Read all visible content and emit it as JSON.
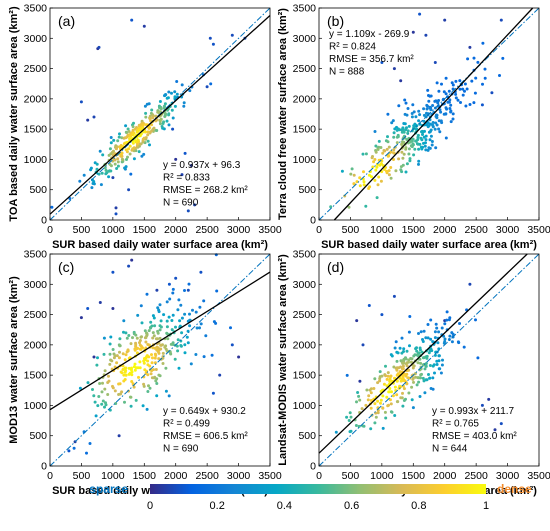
{
  "chart_data": [
    {
      "type": "scatter",
      "panel_label": "(a)",
      "xlabel": "SUR based daily water surface area (km²)",
      "ylabel": "TOA based daily water surface area (km²)",
      "xlim": [
        0,
        3500
      ],
      "ylim": [
        0,
        3500
      ],
      "xticks": [
        0,
        500,
        1000,
        1500,
        2000,
        2500,
        3000,
        3500
      ],
      "yticks": [
        0,
        500,
        1000,
        1500,
        2000,
        2500,
        3000,
        3500
      ],
      "fit": {
        "slope": 0.937,
        "intercept": 96.3
      },
      "stats": [
        "y = 0.937x + 96.3",
        "R² = 0.833",
        "RMSE = 268.2 km²",
        "N = 690"
      ],
      "stats_position": "lower-right",
      "cloud": {
        "center": [
          1400,
          1400
        ],
        "spread_along": 520,
        "spread_across": 110,
        "hot_center": [
          1350,
          1350
        ],
        "count": 300
      },
      "outliers": [
        [
          780,
          2850
        ],
        [
          760,
          2830
        ],
        [
          1300,
          3300
        ],
        [
          1500,
          3200
        ],
        [
          2550,
          3000
        ],
        [
          2900,
          3050
        ],
        [
          1950,
          1500
        ],
        [
          2150,
          1100
        ],
        [
          2250,
          900
        ],
        [
          2100,
          750
        ],
        [
          2300,
          250
        ],
        [
          2200,
          150
        ],
        [
          1050,
          200
        ],
        [
          1050,
          100
        ],
        [
          1250,
          500
        ],
        [
          500,
          1950
        ],
        [
          700,
          1700
        ],
        [
          600,
          1650
        ],
        [
          1000,
          700
        ],
        [
          2000,
          1000
        ],
        [
          2600,
          2900
        ],
        [
          3100,
          3000
        ],
        [
          2500,
          2200
        ]
      ]
    },
    {
      "type": "scatter",
      "panel_label": "(b)",
      "xlabel": "SUR based daily water surface area (km²)",
      "ylabel": "Terra cloud free water surface area (km²)",
      "xlim": [
        0,
        3500
      ],
      "ylim": [
        0,
        3500
      ],
      "xticks": [
        0,
        500,
        1000,
        1500,
        2000,
        2500,
        3000,
        3500
      ],
      "yticks": [
        0,
        500,
        1000,
        1500,
        2000,
        2500,
        3000,
        3500
      ],
      "fit": {
        "slope": 1.109,
        "intercept": -269.9
      },
      "stats": [
        "y = 1.109x - 269.9",
        "R² = 0.824",
        "RMSE = 356.7 km²",
        "N = 888"
      ],
      "stats_position": "upper-left",
      "cloud": {
        "center": [
          1500,
          1400
        ],
        "spread_along": 620,
        "spread_across": 190,
        "hot_center": [
          850,
          750
        ],
        "count": 340
      },
      "outliers": [
        [
          1500,
          3100
        ],
        [
          1700,
          3050
        ],
        [
          2000,
          3300
        ],
        [
          1850,
          2600
        ],
        [
          1600,
          3400
        ],
        [
          1200,
          2500
        ],
        [
          2750,
          2100
        ],
        [
          2600,
          1900
        ],
        [
          1000,
          2600
        ],
        [
          1300,
          2300
        ],
        [
          2900,
          3300
        ],
        [
          2400,
          2850
        ]
      ]
    },
    {
      "type": "scatter",
      "panel_label": "(c)",
      "xlabel": "SUR based daily water surface area (km²)",
      "ylabel": "MOD13 water surface area (km²)",
      "xlim": [
        0,
        3500
      ],
      "ylim": [
        0,
        3500
      ],
      "xticks": [
        0,
        500,
        1000,
        1500,
        2000,
        2500,
        3000,
        3500
      ],
      "yticks": [
        0,
        500,
        1000,
        1500,
        2000,
        2500,
        3000,
        3500
      ],
      "fit": {
        "slope": 0.649,
        "intercept": 930.2
      },
      "stats": [
        "y = 0.649x + 930.2",
        "R² = 0.499",
        "RMSE = 606.5 km²",
        "N = 690"
      ],
      "stats_position": "lower-right",
      "cloud": {
        "center": [
          1500,
          1850
        ],
        "spread_along": 560,
        "spread_across": 280,
        "hot_center": [
          1350,
          1650
        ],
        "count": 330
      },
      "outliers": [
        [
          500,
          2450
        ],
        [
          600,
          2600
        ],
        [
          800,
          2700
        ],
        [
          1000,
          3200
        ],
        [
          1300,
          3400
        ],
        [
          1250,
          3300
        ],
        [
          1900,
          3000
        ],
        [
          2400,
          3200
        ],
        [
          2900,
          2000
        ],
        [
          3000,
          1800
        ],
        [
          2700,
          1500
        ],
        [
          2600,
          1200
        ],
        [
          1000,
          2600
        ],
        [
          700,
          1800
        ],
        [
          400,
          400
        ],
        [
          300,
          250
        ],
        [
          1100,
          500
        ],
        [
          2200,
          2900
        ],
        [
          2000,
          3100
        ],
        [
          1700,
          2900
        ]
      ]
    },
    {
      "type": "scatter",
      "panel_label": "(d)",
      "xlabel": "SUR based daily water surface area (km²)",
      "ylabel": "Landsat-MODIS water surface area (km²)",
      "xlim": [
        0,
        3500
      ],
      "ylim": [
        0,
        3500
      ],
      "xticks": [
        0,
        500,
        1000,
        1500,
        2000,
        2500,
        3000,
        3500
      ],
      "yticks": [
        0,
        500,
        1000,
        1500,
        2000,
        2500,
        3000,
        3500
      ],
      "fit": {
        "slope": 0.993,
        "intercept": 211.7
      },
      "stats": [
        "y = 0.993x + 211.7",
        "R² = 0.765",
        "RMSE = 403.0 km²",
        "N = 644"
      ],
      "stats_position": "lower-right",
      "cloud": {
        "center": [
          1400,
          1550
        ],
        "spread_along": 560,
        "spread_across": 190,
        "hot_center": [
          1100,
          1250
        ],
        "count": 320
      },
      "outliers": [
        [
          600,
          2400
        ],
        [
          700,
          2000
        ],
        [
          650,
          1400
        ],
        [
          1200,
          2800
        ],
        [
          2000,
          2400
        ],
        [
          2400,
          3000
        ],
        [
          2700,
          1100
        ],
        [
          2800,
          600
        ],
        [
          2900,
          700
        ],
        [
          2600,
          1000
        ],
        [
          1000,
          2500
        ],
        [
          800,
          2650
        ]
      ]
    }
  ],
  "colorbar": {
    "min_label": "sparse",
    "max_label": "dense",
    "ticks": [
      "0",
      "0.2",
      "0.4",
      "0.6",
      "0.8",
      "1"
    ],
    "colormap": "parula",
    "colors": [
      "#352a87",
      "#0363e1",
      "#1485d4",
      "#06a7c6",
      "#38b99e",
      "#92bf73",
      "#d9ba56",
      "#fcce2e",
      "#f9fb0e"
    ],
    "sparse_color": "#0072bd",
    "dense_color": "#f28b2c"
  }
}
